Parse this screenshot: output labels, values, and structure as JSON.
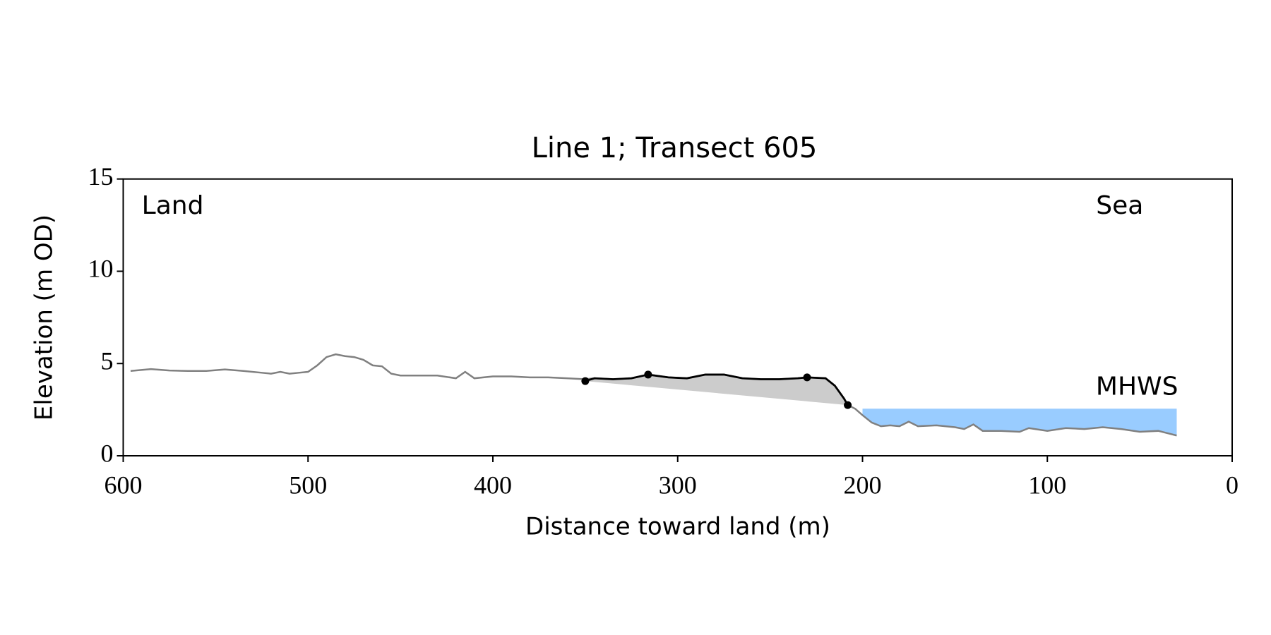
{
  "chart_data": {
    "type": "line",
    "title": "Line 1; Transect 605",
    "xlabel": "Distance toward land (m)",
    "ylabel": "Elevation (m OD)",
    "xlim": [
      600,
      0
    ],
    "ylim": [
      0,
      15
    ],
    "xticks": [
      600,
      500,
      400,
      300,
      200,
      100,
      0
    ],
    "yticks": [
      0,
      5,
      10,
      15
    ],
    "annotations": [
      {
        "text": "Land",
        "x": 590,
        "y": 13.5
      },
      {
        "text": "Sea",
        "x": 48,
        "y": 13.5
      }
    ],
    "series": [
      {
        "color": "#808080",
        "x": [
          596,
          585,
          575,
          565,
          555,
          545,
          535,
          525,
          520,
          515,
          510,
          505,
          500,
          495,
          490,
          485,
          480,
          475,
          470,
          465,
          460,
          455,
          450,
          440,
          430,
          420,
          415,
          410,
          400,
          390,
          380,
          370,
          360,
          350,
          345,
          335,
          325,
          316,
          305,
          295,
          285,
          275,
          265,
          255,
          245,
          235,
          230,
          220,
          215,
          210,
          208,
          204,
          200,
          195,
          190,
          185,
          180,
          175,
          170,
          160,
          150,
          145,
          140,
          135,
          125,
          115,
          110,
          100,
          90,
          80,
          70,
          60,
          50,
          40,
          30
        ],
        "values": [
          4.6,
          4.7,
          4.62,
          4.6,
          4.6,
          4.68,
          4.6,
          4.5,
          4.45,
          4.55,
          4.45,
          4.5,
          4.55,
          4.9,
          5.35,
          5.5,
          5.4,
          5.35,
          5.2,
          4.9,
          4.85,
          4.45,
          4.35,
          4.35,
          4.35,
          4.2,
          4.55,
          4.2,
          4.3,
          4.3,
          4.25,
          4.25,
          4.2,
          4.15,
          4.2,
          4.15,
          4.2,
          4.4,
          4.25,
          4.2,
          4.4,
          4.4,
          4.2,
          4.15,
          4.15,
          4.2,
          4.25,
          4.2,
          3.8,
          3.1,
          2.75,
          2.55,
          2.2,
          1.8,
          1.6,
          1.65,
          1.6,
          1.85,
          1.6,
          1.65,
          1.55,
          1.45,
          1.7,
          1.35,
          1.35,
          1.3,
          1.5,
          1.35,
          1.5,
          1.45,
          1.55,
          1.45,
          1.3,
          1.35,
          1.1
        ]
      },
      {
        "color": "#000000",
        "x": [
          350,
          345,
          335,
          325,
          316,
          305,
          295,
          285,
          275,
          265,
          255,
          245,
          235,
          230,
          220,
          215,
          210,
          208
        ],
        "values": [
          4.05,
          4.2,
          4.15,
          4.2,
          4.4,
          4.25,
          4.2,
          4.4,
          4.4,
          4.2,
          4.15,
          4.15,
          4.2,
          4.25,
          4.2,
          3.8,
          3.1,
          2.75
        ]
      }
    ],
    "points": {
      "color": "#000000",
      "x": [
        350,
        316,
        230,
        208
      ],
      "values": [
        4.05,
        4.4,
        4.25,
        2.75
      ]
    },
    "fill_color": "#cccccc",
    "mhws": {
      "label": "MHWS",
      "level": 2.55,
      "x": [
        200,
        30
      ],
      "color": "#99ccff",
      "label_color": "#6699cc"
    }
  }
}
